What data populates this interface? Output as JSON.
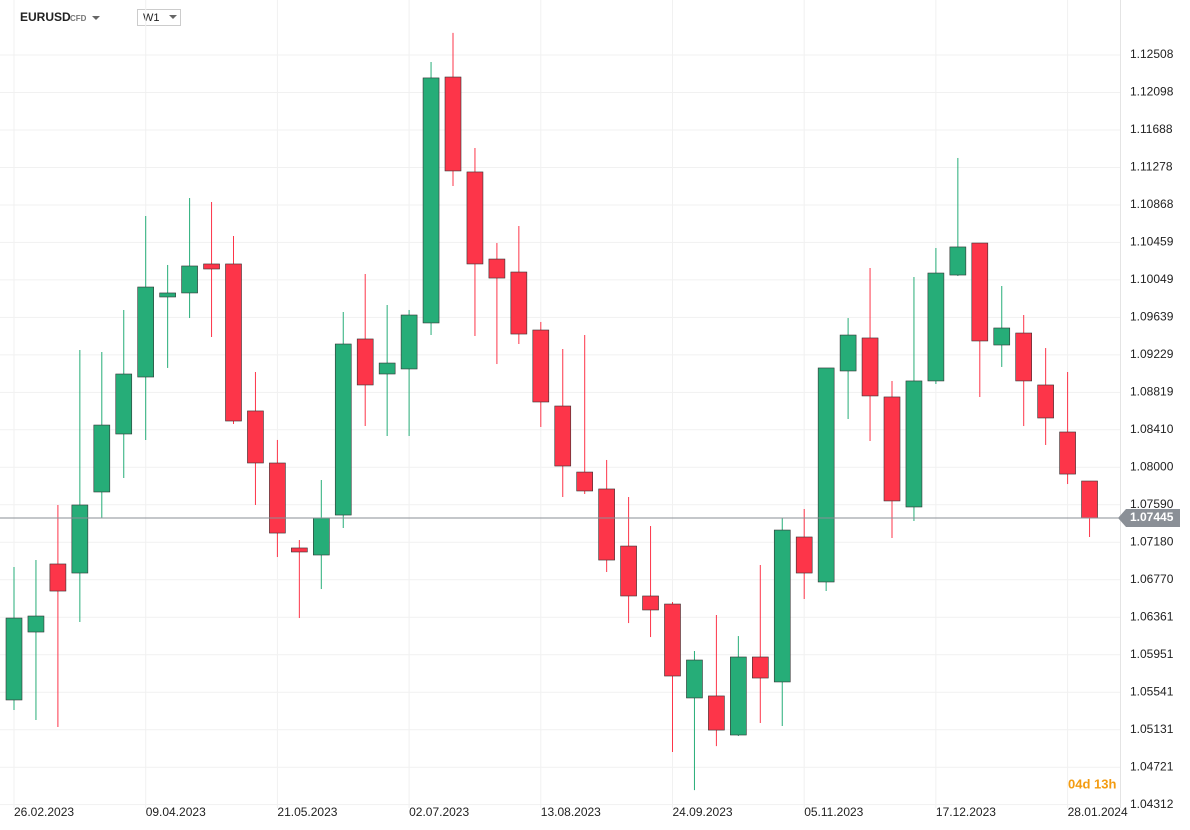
{
  "chart_data": {
    "type": "candlestick",
    "symbol": "EURUSD",
    "instrument_type": "CFD",
    "timeframe": "W1",
    "countdown": "04d 13h",
    "last_price": 1.07445,
    "up_color": "#26ad78",
    "down_color": "#fd3549",
    "grid": true,
    "categories": [
      "26.02.2023",
      null,
      null,
      null,
      null,
      null,
      "09.04.2023",
      null,
      null,
      null,
      null,
      null,
      "21.05.2023",
      null,
      null,
      null,
      null,
      null,
      "02.07.2023",
      null,
      null,
      null,
      null,
      null,
      "13.08.2023",
      null,
      null,
      null,
      null,
      null,
      "24.09.2023",
      null,
      null,
      null,
      null,
      null,
      "05.11.2023",
      null,
      null,
      null,
      null,
      null,
      "17.12.2023",
      null,
      null,
      null,
      null,
      null,
      "28.01.2024",
      null
    ],
    "open": [
      1.05456,
      1.06199,
      1.06943,
      1.06844,
      1.0773,
      1.08364,
      1.08987,
      1.09862,
      1.09906,
      1.10223,
      1.10223,
      1.08616,
      1.08047,
      1.07118,
      1.07041,
      1.07478,
      1.09403,
      1.0902,
      1.09075,
      1.09578,
      1.12267,
      1.11229,
      1.10277,
      1.10135,
      1.09501,
      1.0867,
      1.07948,
      1.07763,
      1.07139,
      1.06593,
      1.06505,
      1.05478,
      1.055,
      1.05073,
      1.05926,
      1.05653,
      1.07238,
      1.06746,
      1.09053,
      1.09414,
      1.08769,
      1.07566,
      1.08944,
      1.10102,
      1.10452,
      1.09337,
      1.09468,
      1.089,
      1.08386,
      1.0785
    ],
    "high": [
      1.0691,
      1.06986,
      1.07588,
      1.09282,
      1.09261,
      1.0972,
      1.10748,
      1.10212,
      1.10944,
      1.10901,
      1.10529,
      1.09042,
      1.08299,
      1.07205,
      1.07861,
      1.09698,
      1.10113,
      1.09774,
      1.0972,
      1.12431,
      1.12749,
      1.11491,
      1.10452,
      1.10638,
      1.09589,
      1.09293,
      1.09446,
      1.0808,
      1.07675,
      1.07358,
      1.06527,
      1.05991,
      1.06385,
      1.06155,
      1.06932,
      1.07445,
      1.07544,
      1.09086,
      1.09632,
      1.10179,
      1.08944,
      1.1008,
      1.10398,
      1.11382,
      1.10452,
      1.09982,
      1.09665,
      1.09304,
      1.09042,
      1.0785
    ],
    "low": [
      1.05346,
      1.05237,
      1.0516,
      1.06308,
      1.07445,
      1.07883,
      1.08299,
      1.09086,
      1.09632,
      1.09424,
      1.08473,
      1.07588,
      1.07019,
      1.06352,
      1.06669,
      1.07336,
      1.08451,
      1.08342,
      1.08342,
      1.09446,
      1.11076,
      1.09435,
      1.09129,
      1.09348,
      1.08441,
      1.07675,
      1.07708,
      1.06855,
      1.06297,
      1.06144,
      1.04887,
      1.04471,
      1.04952,
      1.05062,
      1.05204,
      1.05171,
      1.0656,
      1.06647,
      1.08528,
      1.08288,
      1.07227,
      1.07413,
      1.08911,
      1.10091,
      1.08769,
      1.09097,
      1.08451,
      1.08244,
      1.07817,
      1.07238
    ],
    "close": [
      1.06352,
      1.06374,
      1.06647,
      1.07588,
      1.08462,
      1.0902,
      1.09971,
      1.09906,
      1.10201,
      1.10168,
      1.08506,
      1.08047,
      1.07281,
      1.07074,
      1.07445,
      1.09348,
      1.089,
      1.0914,
      1.09665,
      1.12257,
      1.1124,
      1.10223,
      1.10069,
      1.09457,
      1.08714,
      1.08014,
      1.07741,
      1.06986,
      1.06593,
      1.0644,
      1.05718,
      1.05893,
      1.05127,
      1.05926,
      1.05696,
      1.07314,
      1.06844,
      1.09086,
      1.09446,
      1.0878,
      1.07632,
      1.08944,
      1.10124,
      1.10409,
      1.09381,
      1.09523,
      1.08944,
      1.08539,
      1.07926,
      1.07445
    ],
    "ylim": [
      1.04275,
      1.13109
    ],
    "yticks": [
      1.12508,
      1.12098,
      1.11688,
      1.11278,
      1.10868,
      1.10459,
      1.10049,
      1.09639,
      1.09229,
      1.08819,
      {
        "value": 1.0841,
        "label": "1.08410"
      },
      {
        "value": 1.08,
        "label": "1.08000"
      },
      {
        "value": 1.0759,
        "label": "1.07590"
      },
      {
        "value": 1.0718,
        "label": "1.07180"
      },
      {
        "value": 1.0677,
        "label": "1.06770"
      },
      1.06361,
      1.05951,
      1.05541,
      1.05131,
      1.04721,
      1.04312
    ]
  }
}
